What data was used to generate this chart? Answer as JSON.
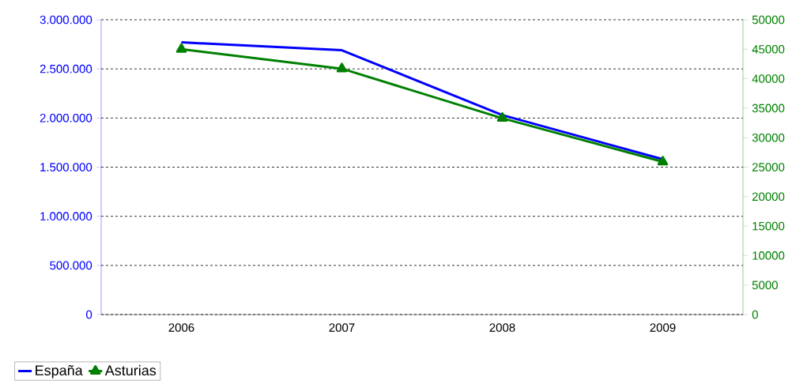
{
  "chart_data": {
    "type": "line",
    "categories": [
      "2006",
      "2007",
      "2008",
      "2009"
    ],
    "series": [
      {
        "name": "España",
        "color": "#0000ff",
        "values": [
          2770000,
          2690000,
          2030000,
          1580000
        ],
        "marker": "none"
      },
      {
        "name": "Asturias",
        "color": "#008000",
        "values": [
          45000,
          41700,
          33300,
          25900
        ],
        "marker": "triangle",
        "axis": "y2"
      }
    ],
    "ylim": [
      0,
      3000000
    ],
    "yticks": [
      0,
      {
        "value": 500000,
        "label": "500.000"
      },
      {
        "value": 1000000,
        "label": "1.000.000"
      },
      {
        "value": 1500000,
        "label": "1.500.000"
      },
      {
        "value": 2000000,
        "label": "2.000.000"
      },
      {
        "value": 2500000,
        "label": "2.500.000"
      },
      {
        "value": 3000000,
        "label": "3.000.000"
      }
    ],
    "y2lim": [
      0,
      50000
    ],
    "y2ticks": [
      0,
      5000,
      10000,
      15000,
      20000,
      25000,
      30000,
      35000,
      40000,
      45000,
      50000
    ],
    "grid": "y",
    "legend": "bottom left",
    "line_style": "solid"
  }
}
